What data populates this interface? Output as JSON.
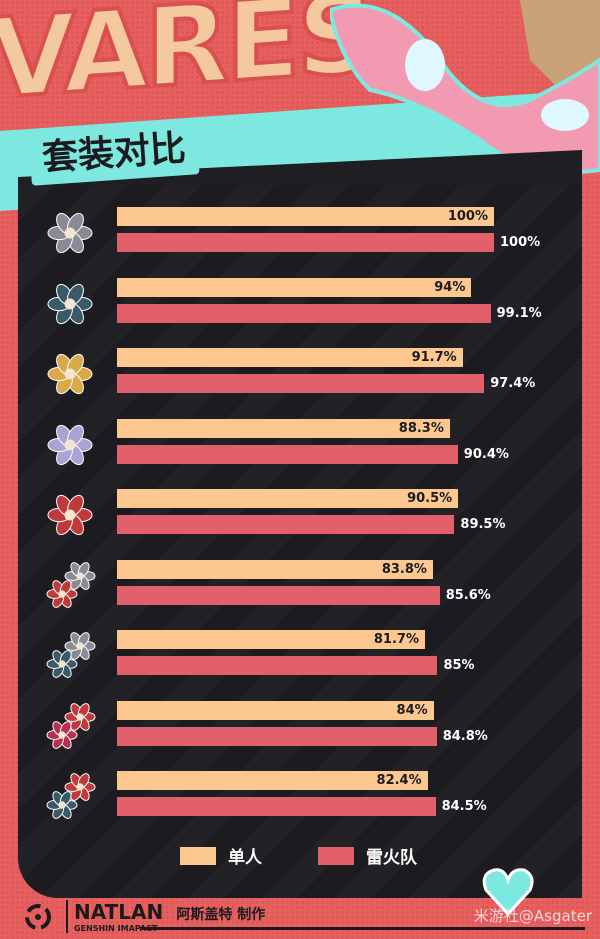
{
  "banner_text": "VARES",
  "chart_data": {
    "type": "bar",
    "orientation": "horizontal",
    "title": "套装对比",
    "categories": [
      "set-1",
      "set-2",
      "set-3",
      "set-4",
      "set-5",
      "set-6",
      "set-7",
      "set-8",
      "set-9"
    ],
    "series": [
      {
        "name": "单人",
        "color": "#fcc88f",
        "values": [
          100,
          94,
          91.7,
          88.3,
          90.5,
          83.8,
          81.7,
          84,
          82.4
        ],
        "labels": [
          "100%",
          "94%",
          "91.7%",
          "88.3%",
          "90.5%",
          "83.8%",
          "81.7%",
          "84%",
          "82.4%"
        ]
      },
      {
        "name": "雷火队",
        "color": "#e2606a",
        "values": [
          100,
          99.1,
          97.4,
          90.4,
          89.5,
          85.6,
          85,
          84.8,
          84.5
        ],
        "labels": [
          "100%",
          "99.1%",
          "97.4%",
          "90.4%",
          "89.5%",
          "85.6%",
          "85%",
          "84.8%",
          "84.5%"
        ]
      }
    ],
    "xlim": [
      0,
      100
    ],
    "legend": "bottom"
  },
  "icons": [
    [
      "#8a8a96"
    ],
    [
      "#3a5a6a"
    ],
    [
      "#d9a94a"
    ],
    [
      "#a9a3d6"
    ],
    [
      "#c0393b"
    ],
    [
      "#c0393b",
      "#8a8a96"
    ],
    [
      "#3a5a6a",
      "#8a8a96"
    ],
    [
      "#b83050",
      "#c0393b"
    ],
    [
      "#3a5a6a",
      "#c0393b"
    ]
  ],
  "footer": {
    "brand": "NATLAN",
    "sub": "GENSHIN IMAPACT",
    "maker": "阿斯盖特 制作"
  },
  "watermark": "米游社@Asgater"
}
